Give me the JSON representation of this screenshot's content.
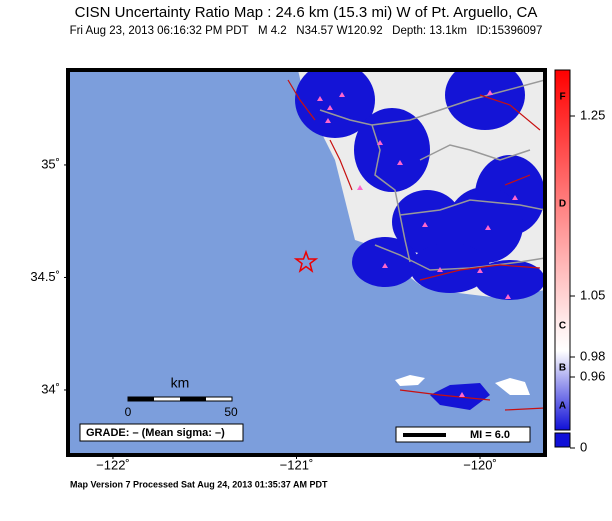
{
  "header": {
    "title": "CISN Uncertainty Ratio Map : 24.6 km (15.3 mi) W of Pt. Arguello, CA",
    "subtitle": "Fri Aug 23, 2013 06:16:32 PM PDT   M 4.2   N34.57 W120.92   Depth: 13.1km   ID:15396097"
  },
  "map": {
    "xlim": [
      -122.245,
      -119.646
    ],
    "ylim": [
      33.711,
      35.422
    ],
    "xticks": [
      {
        "value": -122,
        "label": "−122˚"
      },
      {
        "value": -121,
        "label": "−121˚"
      },
      {
        "value": -120,
        "label": "−120˚"
      }
    ],
    "yticks": [
      {
        "value": 35,
        "label": "35˚"
      },
      {
        "value": 34.5,
        "label": "34.5˚"
      },
      {
        "value": 34,
        "label": "34˚"
      }
    ]
  },
  "colorbar": {
    "letters": [
      "F",
      "D",
      "C",
      "B",
      "A"
    ],
    "ticks": [
      1.25,
      1.05,
      0.98,
      0.96,
      0
    ]
  },
  "scale_bar": {
    "unit": "km",
    "labels": [
      0,
      50
    ]
  },
  "grade": "GRADE: – (Mean sigma: –)",
  "mi_label": "MI = 6.0",
  "footer": "Map Version 7 Processed Sat Aug 24, 2013 01:35:37 AM PDT"
}
